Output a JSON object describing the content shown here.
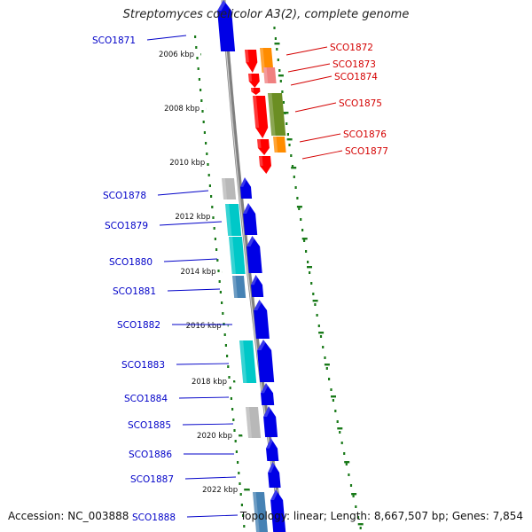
{
  "title": "Streptomyces coelicolor A3(2), complete genome",
  "accession": "Accession: NC_003888",
  "topology": "Topology: linear; Length: 8,667,507 bp; Genes: 7,854",
  "colors": {
    "left_label": "#0000c8",
    "right_label": "#d40000",
    "scale": "#1a7a1a",
    "backbone": "#808080"
  },
  "kbp_ticks": [
    "2006 kbp",
    "2008 kbp",
    "2010 kbp",
    "2012 kbp",
    "2014 kbp",
    "2016 kbp",
    "2018 kbp",
    "2020 kbp",
    "2022 kbp"
  ],
  "left_labels": [
    "SCO1871",
    "SCO1878",
    "SCO1879",
    "SCO1880",
    "SCO1881",
    "SCO1882",
    "SCO1883",
    "SCO1884",
    "SCO1885",
    "SCO1886",
    "SCO1887",
    "SCO1888"
  ],
  "right_labels": [
    "SCO1872",
    "SCO1873",
    "SCO1874",
    "SCO1875",
    "SCO1876",
    "SCO1877"
  ]
}
